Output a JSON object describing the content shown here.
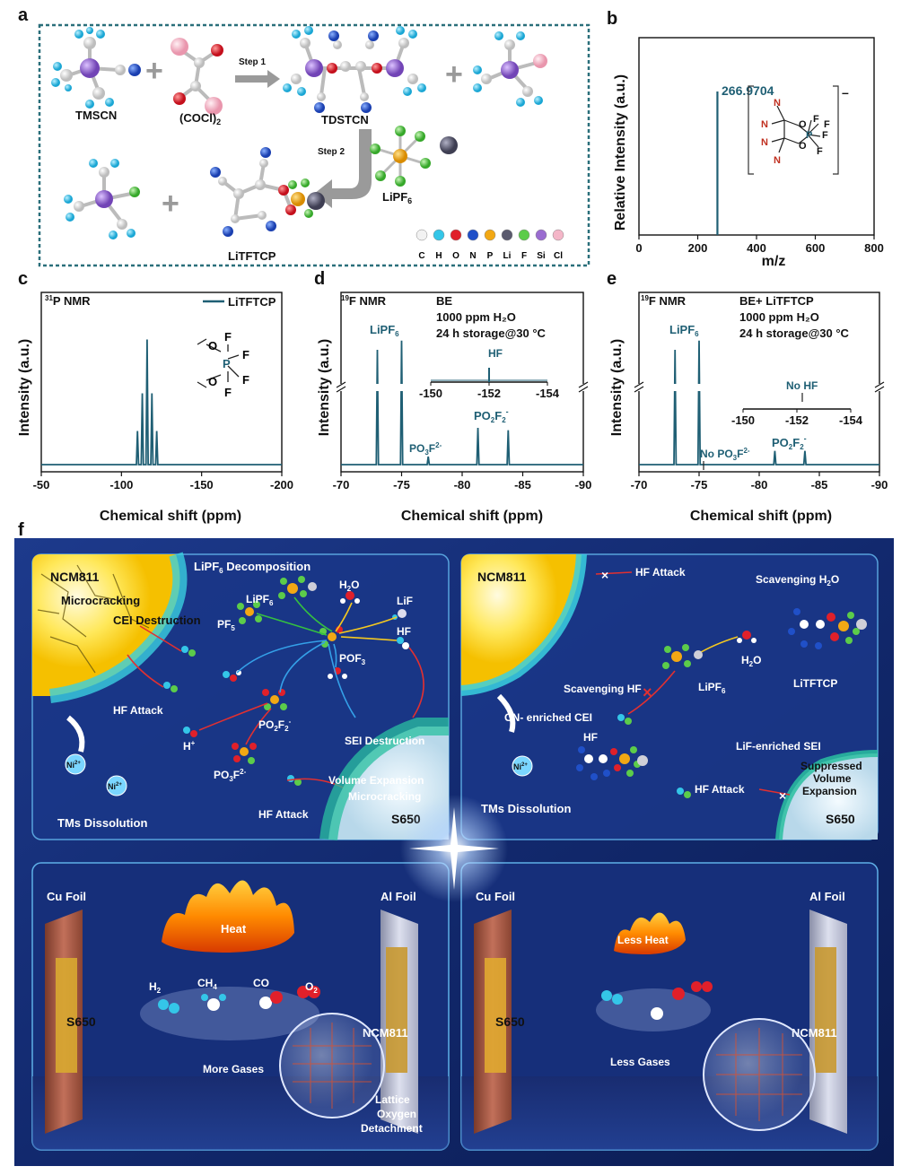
{
  "panel_labels": {
    "a": "a",
    "b": "b",
    "c": "c",
    "d": "d",
    "e": "e",
    "f": "f"
  },
  "scheme_a": {
    "tmscn": "TMSCN",
    "oxalyl": "(COCl)",
    "oxalyl_sub": "2",
    "step1": "Step 1",
    "tdstcn": "TDSTCN",
    "step2": "Step 2",
    "lipf6": "LiPF",
    "lipf6_sub": "6",
    "litftcp": "LiTFTCP",
    "legend": [
      {
        "label": "C",
        "color": "#f2f2f2"
      },
      {
        "label": "H",
        "color": "#34c6e8"
      },
      {
        "label": "O",
        "color": "#e0202a"
      },
      {
        "label": "N",
        "color": "#2050c8"
      },
      {
        "label": "P",
        "color": "#f2a814"
      },
      {
        "label": "Li",
        "color": "#5a5a6e"
      },
      {
        "label": "F",
        "color": "#5ccc4a"
      },
      {
        "label": "Si",
        "color": "#9a6cd0"
      },
      {
        "label": "Cl",
        "color": "#f4b6c8"
      }
    ]
  },
  "panel_b": {
    "ylabel": "Relative Intensity (a.u.)",
    "xlabel": "m/z",
    "peak_label": "266.9704",
    "charge": "–",
    "mol": {
      "n": "N",
      "o": "O",
      "p": "P",
      "f": "F"
    }
  },
  "panel_c": {
    "nmr": "P NMR",
    "nmr_sup": "31",
    "legend": "LiTFTCP",
    "ylabel": "Intensity (a.u.)",
    "xlabel": "Chemical shift (ppm)",
    "mol": {
      "o": "O",
      "p": "P",
      "f": "F"
    }
  },
  "panel_d": {
    "nmr": "F NMR",
    "nmr_sup": "19",
    "cond": [
      "BE",
      "1000 ppm H₂O",
      "24 h storage@30 °C"
    ],
    "peak_lipf6": "LiPF",
    "peak_lipf6_sub": "6",
    "inset_peak": "HF",
    "po3f": "PO",
    "po3f_sub": "3",
    "po3f_sup": "F",
    "po3f_sup2": "2-",
    "po2f2": "PO",
    "po2f2_sub1": "2",
    "po2f2_f": "F",
    "po2f2_sub2": "2",
    "po2f2_sup": "-",
    "ylabel": "Intensity (a.u.)",
    "xlabel": "Chemical shift (ppm)"
  },
  "panel_e": {
    "nmr": "F NMR",
    "nmr_sup": "19",
    "cond": [
      "BE+ LiTFTCP",
      "1000 ppm H₂O",
      "24 h storage@30 °C"
    ],
    "peak_lipf6": "LiPF",
    "peak_lipf6_sub": "6",
    "inset_peak": "No HF",
    "no_po3f": "No PO",
    "no_po3f_sub": "3",
    "no_po3f_sup": "F",
    "no_po3f_sup2": "2-",
    "po2f2": "PO",
    "po2f2_sub1": "2",
    "po2f2_f": "F",
    "po2f2_sub2": "2",
    "po2f2_sup": "-",
    "ylabel": "Intensity (a.u.)",
    "xlabel": "Chemical shift (ppm)"
  },
  "panel_f": {
    "tl": {
      "ncm": "NCM811",
      "lipf6_dec": "LiPF",
      "lipf6_dec_sub": "6",
      "lipf6_dec2": " Decomposition",
      "micro": "Microcracking",
      "cei": "CEI Destruction",
      "lipf6": "LiPF",
      "lipf6_sub": "6",
      "h2o": "H",
      "h2o_sub": "2",
      "h2o_o": "O",
      "lif": "LiF",
      "pf5": "PF",
      "pf5_sub": "5",
      "hf": "HF",
      "pof3": "POF",
      "pof3_sub": "3",
      "hf_attack": "HF Attack",
      "po2f2": "PO",
      "po2f2_s1": "2",
      "po2f2_f": "F",
      "po2f2_s2": "2",
      "po2f2_sup": "-",
      "hplus": "H",
      "hplus_sup": "+",
      "po3f": "PO",
      "po3f_s": "3",
      "po3f_f": "F",
      "po3f_sup": "2-",
      "sei": "SEI Destruction",
      "vol": "Volume Expansion",
      "micro2": "Microcracking",
      "hf_attack2": "HF Attack",
      "ni": "Ni",
      "ni_sup": "2+",
      "tms": "TMs Dissolution",
      "s650": "S650"
    },
    "tr": {
      "ncm": "NCM811",
      "hf_attack": "HF Attack",
      "scav_h2o": "Scavenging H",
      "scav_h2o_sub": "2",
      "scav_h2o_o": "O",
      "h2o": "H",
      "h2o_sub": "2",
      "h2o_o": "O",
      "litftcp": "LiTFTCP",
      "scav_hf": "Scavenging HF",
      "lipf6": "LiPF",
      "lipf6_sub": "6",
      "cn_cei": "CN- enriched CEI",
      "hf": "HF",
      "lif_sei": "LiF-enriched SEI",
      "suppressed": [
        "Suppressed",
        "Volume",
        "Expansion"
      ],
      "hf_attack2": "HF Attack",
      "ni": "Ni",
      "ni_sup": "2+",
      "tms": "TMs Dissolution",
      "s650": "S650"
    },
    "bl": {
      "cu": "Cu Foil",
      "al": "Al Foil",
      "heat": "Heat",
      "h2": "H",
      "h2_sub": "2",
      "ch4": "CH",
      "ch4_sub": "4",
      "co": "CO",
      "o2": "O",
      "o2_sub": "2",
      "s650": "S650",
      "ncm": "NCM811",
      "more_gas": "More Gases",
      "lattice": [
        "Lattice",
        "Oxygen",
        "Detachment"
      ]
    },
    "br": {
      "cu": "Cu Foil",
      "al": "Al Foil",
      "heat": "Less Heat",
      "s650": "S650",
      "ncm": "NCM811",
      "less_gas": "Less Gases"
    }
  },
  "chart_data": [
    {
      "type": "bar",
      "panel": "b",
      "x": [
        266.9704
      ],
      "values": [
        1.0
      ],
      "xlabel": "m/z",
      "ylabel": "Relative Intensity (a.u.)",
      "xlim": [
        0,
        800
      ],
      "xticks": [
        0,
        200,
        400,
        600,
        800
      ]
    },
    {
      "type": "line",
      "panel": "c",
      "peaks_ppm": [
        -110,
        -113,
        -116,
        -119,
        -122
      ],
      "rel_heights": [
        0.25,
        0.53,
        0.93,
        0.53,
        0.25
      ],
      "xlabel": "Chemical shift (ppm)",
      "ylabel": "Intensity (a.u.)",
      "xlim": [
        -50,
        -200
      ],
      "xticks": [
        -50,
        -100,
        -150,
        -200
      ],
      "legend": "LiTFTCP"
    },
    {
      "type": "line",
      "panel": "d",
      "peaks_ppm": [
        -73,
        -75,
        -77.2,
        -81.3,
        -83.8
      ],
      "rel_heights": [
        1.0,
        1.08,
        0.07,
        0.32,
        0.3
      ],
      "xlabel": "Chemical shift (ppm)",
      "ylabel": "Intensity (a.u.)",
      "xlim": [
        -70,
        -90
      ],
      "xticks": [
        -70,
        -75,
        -80,
        -85,
        -90
      ],
      "inset": {
        "xlim": [
          -150,
          -154
        ],
        "xticks": [
          -150,
          -152,
          -154
        ],
        "peak_ppm": -152
      }
    },
    {
      "type": "line",
      "panel": "e",
      "peaks_ppm": [
        -73,
        -75,
        -81.3,
        -83.8
      ],
      "rel_heights": [
        1.0,
        1.08,
        0.12,
        0.12
      ],
      "xlabel": "Chemical shift (ppm)",
      "ylabel": "Intensity (a.u.)",
      "xlim": [
        -70,
        -90
      ],
      "xticks": [
        -70,
        -75,
        -80,
        -85,
        -90
      ],
      "inset": {
        "xlim": [
          -150,
          -154
        ],
        "xticks": [
          -150,
          -152,
          -154
        ]
      }
    }
  ]
}
